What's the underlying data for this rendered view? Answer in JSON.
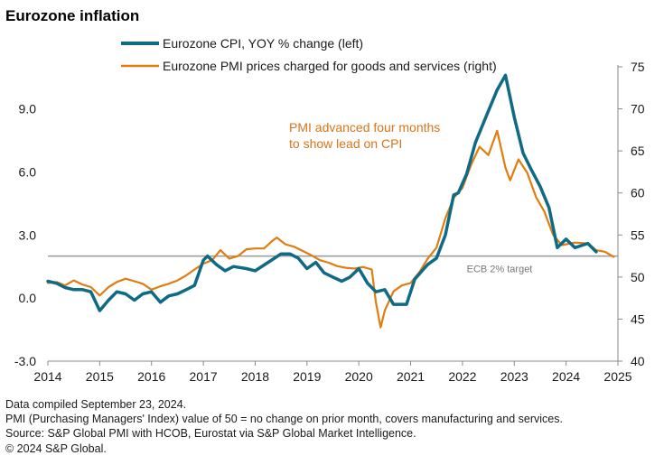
{
  "chart_data": {
    "type": "line",
    "title": "Eurozone inflation",
    "x_axis": {
      "range": [
        2014.0,
        2025.0
      ],
      "ticks": [
        2014,
        2015,
        2016,
        2017,
        2018,
        2019,
        2020,
        2021,
        2022,
        2023,
        2024,
        2025
      ]
    },
    "y_left": {
      "range": [
        -3.0,
        11.0
      ],
      "ticks": [
        -3.0,
        0.0,
        3.0,
        6.0,
        9.0
      ],
      "tick_labels": [
        "-3.0",
        "0.0",
        "3.0",
        "6.0",
        "9.0"
      ]
    },
    "y_right": {
      "range": [
        40,
        75
      ],
      "ticks": [
        40,
        45,
        50,
        55,
        60,
        65,
        70,
        75
      ],
      "tick_labels": [
        "40",
        "45",
        "50",
        "55",
        "60",
        "65",
        "70",
        "75"
      ]
    },
    "grid": false,
    "legend": {
      "position": "top"
    },
    "series": [
      {
        "name": "Eurozone CPI, YOY % change (left)",
        "axis": "left",
        "color": "#0f6a85",
        "points": [
          [
            2014.0,
            0.8
          ],
          [
            2014.17,
            0.7
          ],
          [
            2014.33,
            0.5
          ],
          [
            2014.5,
            0.4
          ],
          [
            2014.67,
            0.4
          ],
          [
            2014.83,
            0.3
          ],
          [
            2015.0,
            -0.6
          ],
          [
            2015.17,
            -0.1
          ],
          [
            2015.33,
            0.3
          ],
          [
            2015.5,
            0.2
          ],
          [
            2015.67,
            -0.1
          ],
          [
            2015.83,
            0.2
          ],
          [
            2016.0,
            0.3
          ],
          [
            2016.17,
            -0.2
          ],
          [
            2016.33,
            0.1
          ],
          [
            2016.5,
            0.2
          ],
          [
            2016.67,
            0.4
          ],
          [
            2016.83,
            0.6
          ],
          [
            2017.0,
            1.8
          ],
          [
            2017.08,
            2.0
          ],
          [
            2017.25,
            1.6
          ],
          [
            2017.42,
            1.3
          ],
          [
            2017.58,
            1.5
          ],
          [
            2017.83,
            1.4
          ],
          [
            2018.0,
            1.3
          ],
          [
            2018.25,
            1.7
          ],
          [
            2018.5,
            2.1
          ],
          [
            2018.67,
            2.1
          ],
          [
            2018.83,
            1.9
          ],
          [
            2019.0,
            1.4
          ],
          [
            2019.17,
            1.7
          ],
          [
            2019.33,
            1.2
          ],
          [
            2019.5,
            1.0
          ],
          [
            2019.67,
            0.8
          ],
          [
            2019.83,
            1.0
          ],
          [
            2020.0,
            1.4
          ],
          [
            2020.17,
            0.7
          ],
          [
            2020.33,
            0.3
          ],
          [
            2020.5,
            0.4
          ],
          [
            2020.67,
            -0.3
          ],
          [
            2020.92,
            -0.3
          ],
          [
            2021.08,
            0.9
          ],
          [
            2021.33,
            1.6
          ],
          [
            2021.5,
            1.9
          ],
          [
            2021.67,
            3.0
          ],
          [
            2021.83,
            4.9
          ],
          [
            2021.92,
            5.0
          ],
          [
            2022.08,
            5.9
          ],
          [
            2022.25,
            7.4
          ],
          [
            2022.5,
            8.9
          ],
          [
            2022.67,
            9.9
          ],
          [
            2022.83,
            10.6
          ],
          [
            2023.0,
            8.6
          ],
          [
            2023.17,
            6.9
          ],
          [
            2023.33,
            6.1
          ],
          [
            2023.5,
            5.3
          ],
          [
            2023.67,
            4.3
          ],
          [
            2023.83,
            2.4
          ],
          [
            2024.0,
            2.8
          ],
          [
            2024.17,
            2.4
          ],
          [
            2024.42,
            2.6
          ],
          [
            2024.58,
            2.2
          ]
        ]
      },
      {
        "name": "Eurozone PMI prices charged for goods and services (right)",
        "axis": "right",
        "color": "#e07c10",
        "points": [
          [
            2014.0,
            49.3
          ],
          [
            2014.17,
            49.4
          ],
          [
            2014.33,
            49.0
          ],
          [
            2014.5,
            49.6
          ],
          [
            2014.67,
            49.1
          ],
          [
            2014.83,
            48.8
          ],
          [
            2015.0,
            47.8
          ],
          [
            2015.17,
            48.8
          ],
          [
            2015.33,
            49.4
          ],
          [
            2015.5,
            49.8
          ],
          [
            2015.67,
            49.5
          ],
          [
            2015.83,
            49.2
          ],
          [
            2016.0,
            48.5
          ],
          [
            2016.17,
            48.9
          ],
          [
            2016.33,
            49.2
          ],
          [
            2016.5,
            49.6
          ],
          [
            2016.67,
            50.2
          ],
          [
            2016.83,
            50.9
          ],
          [
            2017.0,
            51.6
          ],
          [
            2017.17,
            52.0
          ],
          [
            2017.33,
            53.2
          ],
          [
            2017.5,
            52.2
          ],
          [
            2017.67,
            52.5
          ],
          [
            2017.83,
            53.3
          ],
          [
            2018.0,
            53.4
          ],
          [
            2018.17,
            53.4
          ],
          [
            2018.33,
            54.3
          ],
          [
            2018.42,
            54.7
          ],
          [
            2018.58,
            53.9
          ],
          [
            2018.75,
            53.6
          ],
          [
            2018.92,
            53.1
          ],
          [
            2019.08,
            52.6
          ],
          [
            2019.25,
            52.0
          ],
          [
            2019.42,
            51.7
          ],
          [
            2019.58,
            51.3
          ],
          [
            2019.75,
            51.1
          ],
          [
            2019.92,
            51.0
          ],
          [
            2020.08,
            51.2
          ],
          [
            2020.25,
            50.9
          ],
          [
            2020.33,
            47.0
          ],
          [
            2020.42,
            44.0
          ],
          [
            2020.5,
            46.0
          ],
          [
            2020.67,
            48.3
          ],
          [
            2020.83,
            49.0
          ],
          [
            2021.0,
            49.3
          ],
          [
            2021.17,
            50.6
          ],
          [
            2021.33,
            52.2
          ],
          [
            2021.5,
            53.5
          ],
          [
            2021.67,
            57.0
          ],
          [
            2021.83,
            59.4
          ],
          [
            2022.0,
            60.6
          ],
          [
            2022.17,
            63.4
          ],
          [
            2022.33,
            65.5
          ],
          [
            2022.5,
            64.5
          ],
          [
            2022.67,
            67.4
          ],
          [
            2022.83,
            63.0
          ],
          [
            2022.92,
            61.5
          ],
          [
            2023.08,
            64.0
          ],
          [
            2023.25,
            62.4
          ],
          [
            2023.42,
            59.5
          ],
          [
            2023.58,
            57.8
          ],
          [
            2023.75,
            55.0
          ],
          [
            2023.92,
            53.8
          ],
          [
            2024.17,
            54.1
          ],
          [
            2024.42,
            54.0
          ],
          [
            2024.58,
            53.2
          ],
          [
            2024.75,
            53.0
          ],
          [
            2024.92,
            52.4
          ]
        ]
      }
    ],
    "reference_lines": [
      {
        "axis": "left",
        "value": 2.0,
        "label": "ECB 2% target",
        "color": "#999999"
      }
    ],
    "annotations": [
      {
        "lines": [
          "PMI advanced four months",
          "to show lead on CPI"
        ],
        "color": "#d9741a"
      }
    ]
  },
  "footer": {
    "lines": [
      "Data compiled September 23, 2024.",
      "PMI (Purchasing Managers' Index) value of 50 = no change on prior month, covers manufacturing and services.",
      "Source: S&P Global PMI with HCOB, Eurostat via S&P Global Market Intelligence.",
      "© 2024 S&P Global."
    ]
  }
}
